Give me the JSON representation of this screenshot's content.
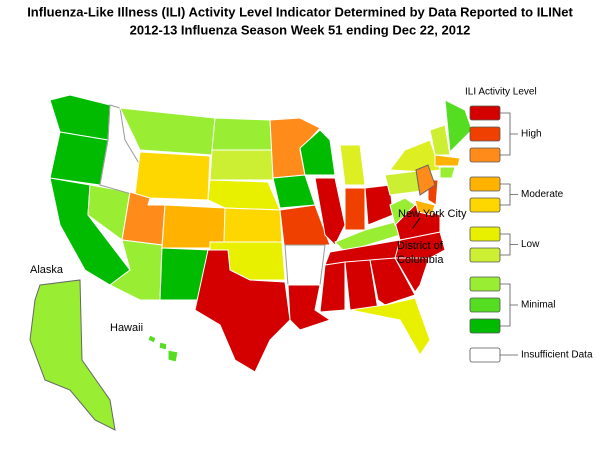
{
  "title_lines": [
    "Influenza-Like Illness (ILI) Activity Level Indicator Determined by Data Reported to ILINet",
    "2012-13  Influenza Season Week  51 ending Dec 22, 2012"
  ],
  "legend": {
    "title": "ILI Activity Level",
    "groups": [
      {
        "label": "High",
        "colors": [
          "#d40000",
          "#f04000",
          "#ff8c1a"
        ]
      },
      {
        "label": "Moderate",
        "colors": [
          "#ffb300",
          "#ffd700"
        ]
      },
      {
        "label": "Low",
        "colors": [
          "#e8f000",
          "#ccee33"
        ]
      },
      {
        "label": "Minimal",
        "colors": [
          "#99ee33",
          "#55dd22",
          "#00bb00"
        ]
      },
      {
        "label": "Insufficient Data",
        "colors": [
          "#ffffff"
        ]
      }
    ]
  },
  "map_labels": {
    "alaska": "Alaska",
    "hawaii": "Hawaii",
    "new_york_city": "New York City",
    "district_of_columbia": [
      "District of",
      "Columbia"
    ]
  }
}
